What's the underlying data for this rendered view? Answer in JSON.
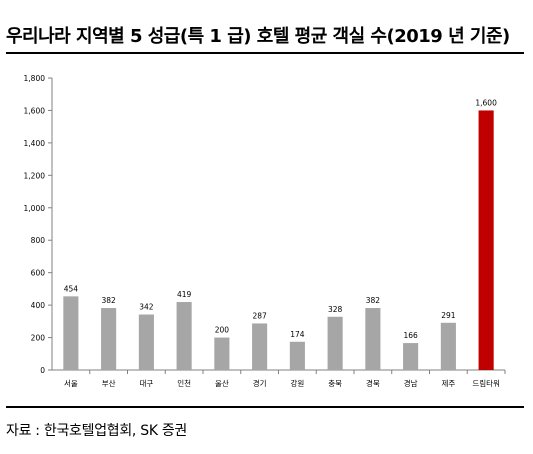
{
  "page": {
    "title": "우리나라 지역별 5 성급(특 1 급) 호텔 평균 객실 수(2019 년 기준)",
    "source": "자료 : 한국호텔업협회, SK 증권"
  },
  "chart_data": {
    "type": "bar",
    "categories": [
      "서울",
      "부산",
      "대구",
      "인천",
      "울산",
      "경기",
      "강원",
      "충북",
      "경북",
      "경남",
      "제주",
      "드림타워"
    ],
    "values": [
      454,
      382,
      342,
      419,
      200,
      287,
      174,
      328,
      382,
      166,
      291,
      1600
    ],
    "value_labels": [
      "454",
      "382",
      "342",
      "419",
      "200",
      "287",
      "174",
      "328",
      "382",
      "166",
      "291",
      "1,600"
    ],
    "yticks": [
      0,
      200,
      400,
      600,
      800,
      1000,
      1200,
      1400,
      1600,
      1800
    ],
    "ytick_labels": [
      "0",
      "200",
      "400",
      "600",
      "800",
      "1,000",
      "1,200",
      "1,400",
      "1,600",
      "1,800"
    ],
    "ylim": [
      0,
      1800
    ],
    "title": "",
    "xlabel": "",
    "ylabel": "",
    "grid": false,
    "bar_color": "#a6a6a6",
    "highlight_color": "#c00000",
    "highlight_category": "드림타워"
  }
}
